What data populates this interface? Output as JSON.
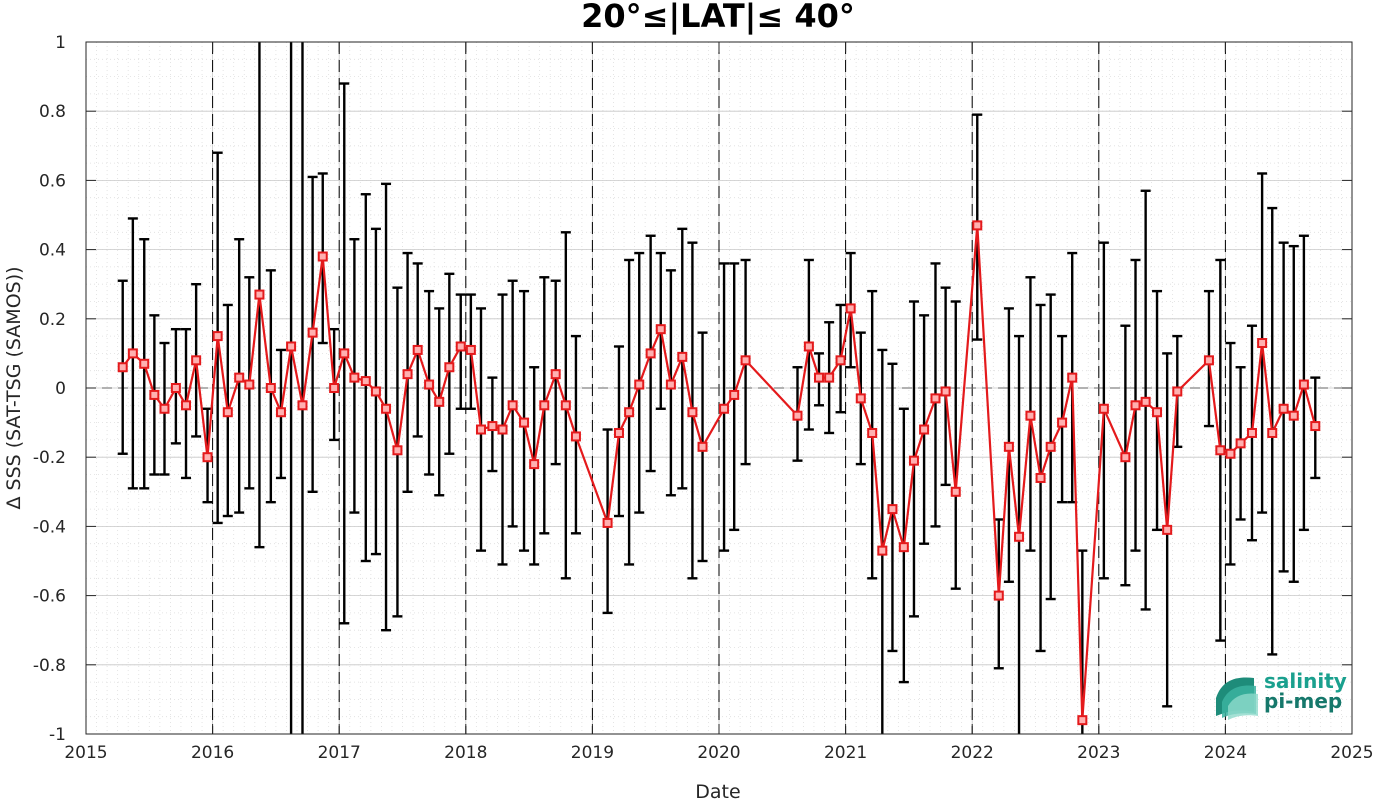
{
  "chart_data": {
    "type": "line",
    "title": "20°≤|LAT|≤ 40°",
    "xlabel": "Date",
    "ylabel": "Δ SSS (SAT-TSG (SAMOS))",
    "xlim": [
      2015,
      2025
    ],
    "ylim": [
      -1,
      1
    ],
    "x_ticks": [
      "2015",
      "2016",
      "2017",
      "2018",
      "2019",
      "2020",
      "2021",
      "2022",
      "2023",
      "2024",
      "2025"
    ],
    "y_ticks": [
      "-1",
      "-0.8",
      "-0.6",
      "-0.4",
      "-0.2",
      "0",
      "0.2",
      "0.4",
      "0.6",
      "0.8",
      "1"
    ],
    "grid": true,
    "zero_line": true,
    "year_boundary_lines": true,
    "colors": {
      "series": "#e41a1c",
      "error_bars": "#000000",
      "grid": "#c8c8c8"
    },
    "series": [
      {
        "x": [
          2015.29,
          2015.37,
          2015.46,
          2015.54,
          2015.62,
          2015.71,
          2015.79,
          2015.87,
          2015.96,
          2016.04,
          2016.12,
          2016.21,
          2016.29,
          2016.37,
          2016.46,
          2016.54,
          2016.62,
          2016.71,
          2016.79,
          2016.87,
          2016.96,
          2017.04,
          2017.12,
          2017.21,
          2017.29,
          2017.37,
          2017.46,
          2017.54,
          2017.62,
          2017.71,
          2017.79,
          2017.87,
          2017.96,
          2018.04,
          2018.12,
          2018.21,
          2018.29,
          2018.37,
          2018.46,
          2018.54,
          2018.62,
          2018.71,
          2018.79,
          2018.87,
          2019.12,
          2019.21,
          2019.29,
          2019.37,
          2019.46,
          2019.54,
          2019.62,
          2019.71,
          2019.79,
          2019.87,
          2020.04,
          2020.12,
          2020.21,
          2020.62,
          2020.71,
          2020.79,
          2020.87,
          2020.96,
          2021.04,
          2021.12,
          2021.21,
          2021.29,
          2021.37,
          2021.46,
          2021.54,
          2021.62,
          2021.71,
          2021.79,
          2021.87,
          2022.04,
          2022.21,
          2022.29,
          2022.37,
          2022.46,
          2022.54,
          2022.62,
          2022.71,
          2022.79,
          2022.87,
          2023.04,
          2023.21,
          2023.29,
          2023.37,
          2023.46,
          2023.54,
          2023.62,
          2023.87,
          2023.96,
          2024.04,
          2024.12,
          2024.21,
          2024.29,
          2024.37,
          2024.46,
          2024.54,
          2024.62,
          2024.71
        ],
        "values": [
          0.06,
          0.1,
          0.07,
          -0.02,
          -0.06,
          0.0,
          -0.05,
          0.08,
          -0.2,
          0.15,
          -0.07,
          0.03,
          0.01,
          0.27,
          0.0,
          -0.07,
          0.12,
          -0.05,
          0.16,
          0.38,
          0.0,
          0.1,
          0.03,
          0.02,
          -0.01,
          -0.06,
          -0.18,
          0.04,
          0.11,
          0.01,
          -0.04,
          0.06,
          0.12,
          0.11,
          -0.12,
          -0.11,
          -0.12,
          -0.05,
          -0.1,
          -0.22,
          -0.05,
          0.04,
          -0.05,
          -0.14,
          -0.39,
          -0.13,
          -0.07,
          0.01,
          0.1,
          0.17,
          0.01,
          0.09,
          -0.07,
          -0.17,
          -0.06,
          -0.02,
          0.08,
          -0.08,
          0.12,
          0.03,
          0.03,
          0.08,
          0.23,
          -0.03,
          -0.13,
          -0.47,
          -0.35,
          -0.46,
          -0.21,
          -0.12,
          -0.03,
          -0.01,
          -0.3,
          0.47,
          -0.6,
          -0.17,
          -0.43,
          -0.08,
          -0.26,
          -0.17,
          -0.1,
          0.03,
          -0.96,
          -0.06,
          -0.2,
          -0.05,
          -0.04,
          -0.07,
          -0.41,
          -0.01,
          0.08,
          -0.18,
          -0.19,
          -0.16,
          -0.13,
          0.13,
          -0.13,
          -0.06,
          -0.08,
          0.01,
          -0.11
        ],
        "error_low": [
          -0.19,
          -0.29,
          -0.29,
          -0.25,
          -0.25,
          -0.16,
          -0.26,
          -0.14,
          -0.33,
          -0.39,
          -0.37,
          -0.36,
          -0.29,
          -0.46,
          -0.33,
          -0.26,
          -1.0,
          -1.0,
          -0.3,
          0.13,
          -0.15,
          -0.68,
          -0.36,
          -0.5,
          -0.48,
          -0.7,
          -0.66,
          -0.3,
          -0.14,
          -0.25,
          -0.31,
          -0.19,
          -0.06,
          -0.06,
          -0.47,
          -0.24,
          -0.51,
          -0.4,
          -0.47,
          -0.51,
          -0.42,
          -0.22,
          -0.55,
          -0.42,
          -0.65,
          -0.37,
          -0.51,
          -0.36,
          -0.24,
          -0.06,
          -0.31,
          -0.29,
          -0.55,
          -0.5,
          -0.47,
          -0.41,
          -0.22,
          -0.21,
          -0.12,
          -0.05,
          -0.13,
          -0.07,
          0.06,
          -0.22,
          -0.55,
          -1.0,
          -0.76,
          -0.85,
          -0.66,
          -0.45,
          -0.4,
          -0.28,
          -0.58,
          0.14,
          -0.81,
          -0.56,
          -1.0,
          -0.47,
          -0.76,
          -0.61,
          -0.33,
          -0.33,
          -1.0,
          -0.55,
          -0.57,
          -0.47,
          -0.64,
          -0.41,
          -0.92,
          -0.17,
          -0.11,
          -0.73,
          -0.51,
          -0.38,
          -0.44,
          -0.36,
          -0.77,
          -0.53,
          -0.56,
          -0.41,
          -0.26
        ],
        "error_high": [
          0.31,
          0.49,
          0.43,
          0.21,
          0.13,
          0.17,
          0.17,
          0.3,
          -0.06,
          0.68,
          0.24,
          0.43,
          0.32,
          1.0,
          0.34,
          0.11,
          1.0,
          1.0,
          0.61,
          0.62,
          0.17,
          0.88,
          0.43,
          0.56,
          0.46,
          0.59,
          0.29,
          0.39,
          0.36,
          0.28,
          0.23,
          0.33,
          0.27,
          0.27,
          0.23,
          0.03,
          0.27,
          0.31,
          0.28,
          0.06,
          0.32,
          0.31,
          0.45,
          0.15,
          -0.12,
          0.12,
          0.37,
          0.39,
          0.44,
          0.39,
          0.34,
          0.46,
          0.42,
          0.16,
          0.36,
          0.36,
          0.37,
          0.06,
          0.37,
          0.1,
          0.19,
          0.24,
          0.39,
          0.16,
          0.28,
          0.11,
          0.07,
          -0.06,
          0.25,
          0.21,
          0.36,
          0.29,
          0.25,
          0.79,
          -0.38,
          0.23,
          0.15,
          0.32,
          0.24,
          0.27,
          0.15,
          0.39,
          -0.47,
          0.42,
          0.18,
          0.37,
          0.57,
          0.28,
          0.1,
          0.15,
          0.28,
          0.37,
          0.13,
          0.06,
          0.18,
          0.62,
          0.52,
          0.42,
          0.41,
          0.44,
          0.03
        ]
      }
    ]
  },
  "logo": {
    "line1": "salinity",
    "line2": "pi-mep"
  }
}
